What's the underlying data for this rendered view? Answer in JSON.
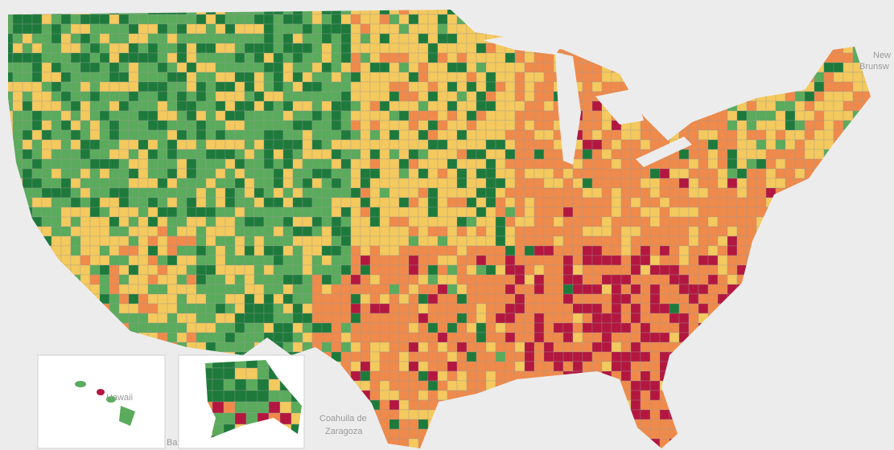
{
  "map": {
    "labels": {
      "new_brunswick": [
        "New",
        "Brunsw"
      ],
      "hawaii": "Hawaii",
      "coahuila": [
        "Coahuila de",
        "Zaragoza"
      ],
      "bottom": "Ba"
    },
    "palette": [
      "#1d7a3b",
      "#5aab5c",
      "#f4c95d",
      "#ef8a4b",
      "#b3173f"
    ]
  }
}
